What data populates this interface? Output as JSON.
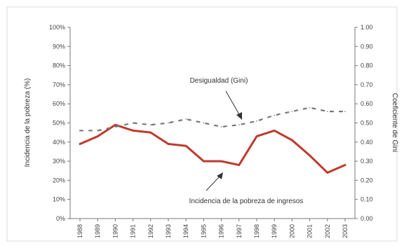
{
  "chart_data": {
    "type": "line",
    "title": "",
    "x": [
      "1988",
      "1989",
      "1990",
      "1991",
      "1992",
      "1993",
      "1994",
      "1995",
      "1996",
      "1997",
      "1998",
      "1999",
      "2000",
      "2001",
      "2002",
      "2003"
    ],
    "y_left": {
      "label": "Incidencia de la pobreza (%)",
      "ticks": [
        "0%",
        "10%",
        "20%",
        "30%",
        "40%",
        "50%",
        "60%",
        "70%",
        "80%",
        "90%",
        "100%"
      ],
      "ylim": [
        0,
        100
      ]
    },
    "y_right": {
      "label": "Coeficiente de Gini",
      "ticks": [
        "0.00",
        "0.10",
        "0.20",
        "0.30",
        "0.40",
        "0.50",
        "0.60",
        "0.70",
        "0.80",
        "0.90",
        "1.00"
      ],
      "ylim": [
        0,
        1
      ]
    },
    "series": [
      {
        "name": "Incidencia de la pobreza de ingresos",
        "axis": "left",
        "style": "solid",
        "color": "#c0392b",
        "values": [
          39,
          43,
          49,
          46,
          45,
          39,
          38,
          30,
          30,
          28,
          43,
          46,
          41,
          33,
          24,
          28
        ]
      },
      {
        "name": "Desigualdad (Gini)",
        "axis": "right",
        "style": "dotted",
        "color": "#777777",
        "values": [
          0.46,
          0.46,
          0.48,
          0.5,
          0.49,
          0.5,
          0.52,
          0.5,
          0.48,
          0.49,
          0.51,
          0.54,
          0.56,
          0.58,
          0.56,
          0.56
        ]
      }
    ],
    "annotations": [
      "Desigualdad (Gini)",
      "Incidencia de la pobreza de ingresos"
    ],
    "grid": false,
    "legend": "none"
  }
}
